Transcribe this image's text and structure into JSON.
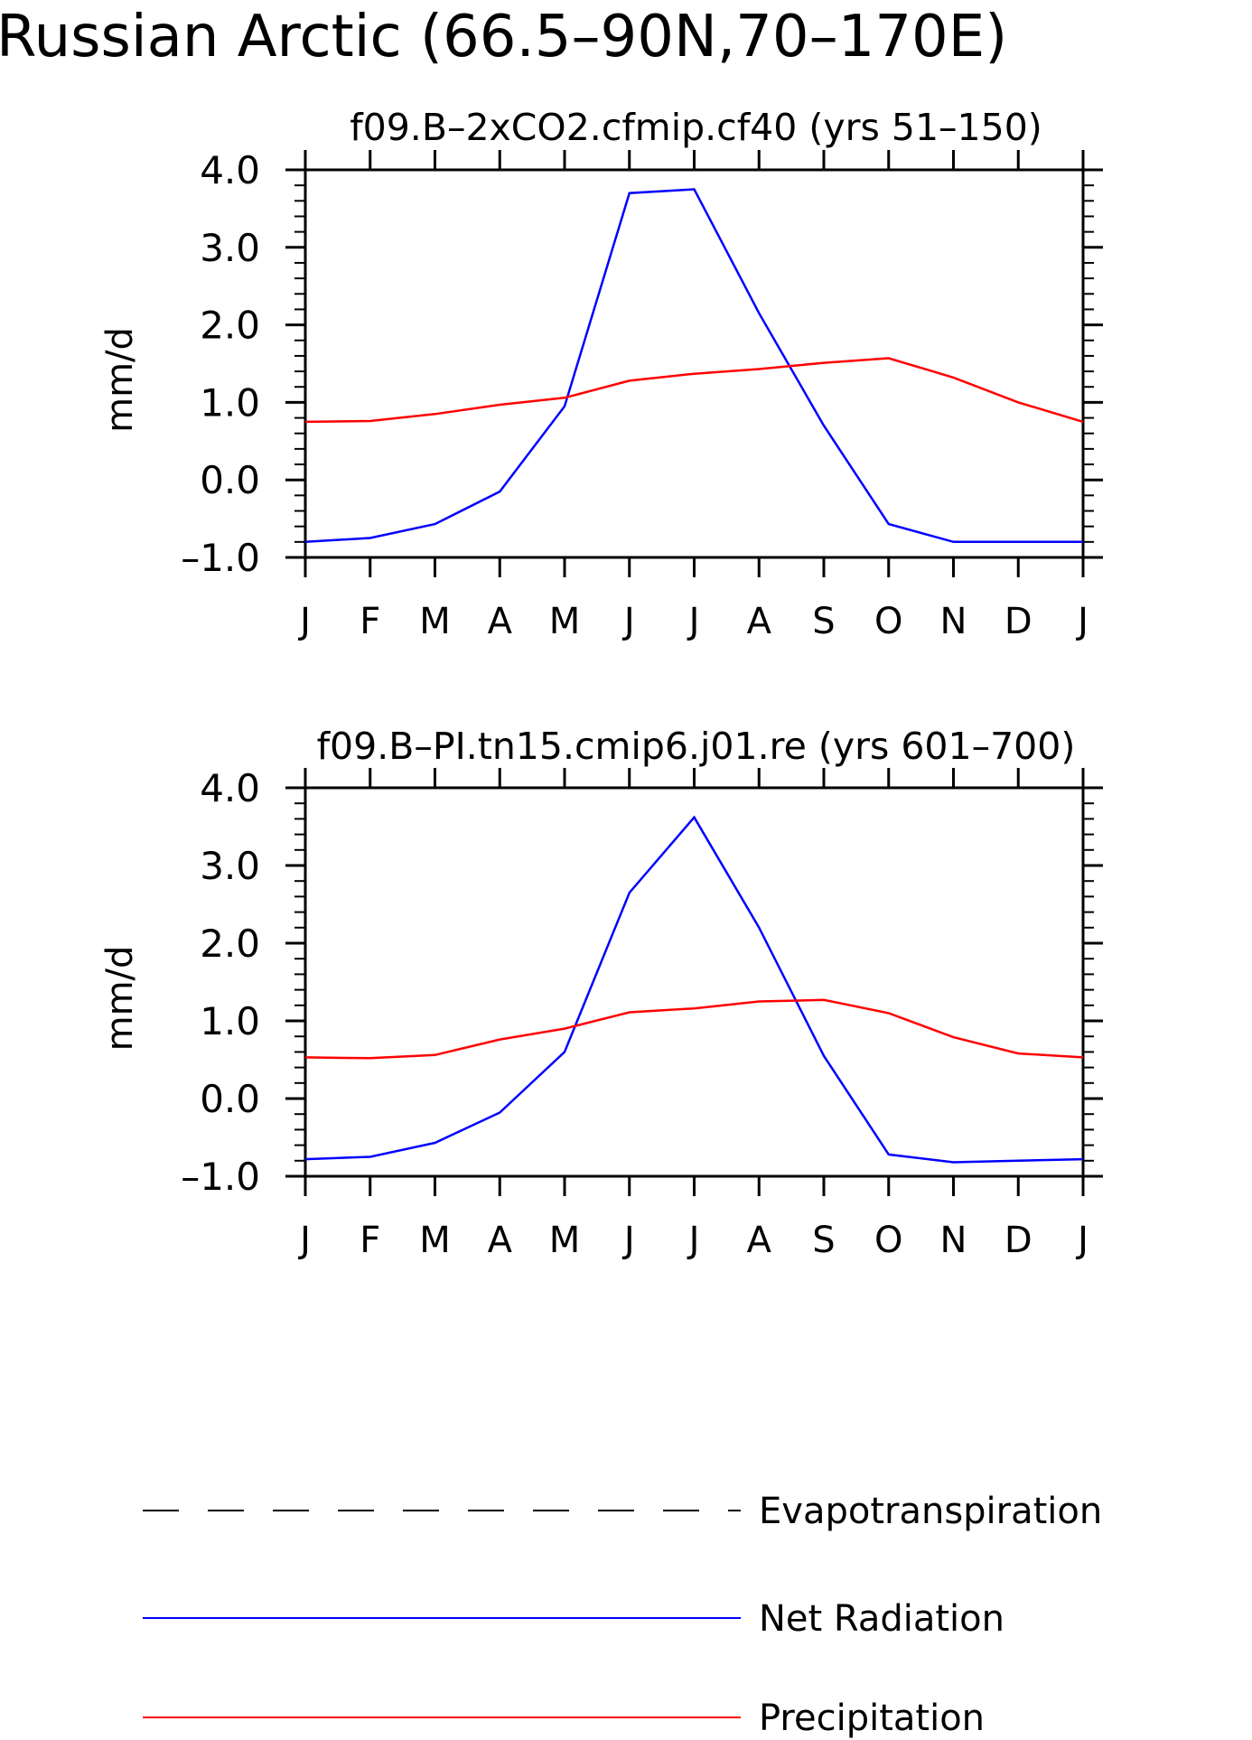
{
  "figure_title": "Russian Arctic (66.5–90N,70–170E)",
  "legend": {
    "items": [
      {
        "label": "Evapotranspiration",
        "color": "#000000",
        "dash": true
      },
      {
        "label": "Net Radiation",
        "color": "#0000ff",
        "dash": false
      },
      {
        "label": "Precipitation",
        "color": "#ff0000",
        "dash": false
      }
    ]
  },
  "chart_data": [
    {
      "type": "line",
      "title": "f09.B–2xCO2.cfmip.cf40 (yrs 51–150)",
      "ylabel": "mm/d",
      "xlabel": "",
      "ylim": [
        -1.0,
        4.0
      ],
      "yticks": [
        "4.0",
        "3.0",
        "2.0",
        "1.0",
        "0.0",
        "–1.0"
      ],
      "categories": [
        "J",
        "F",
        "M",
        "A",
        "M",
        "J",
        "J",
        "A",
        "S",
        "O",
        "N",
        "D",
        "J"
      ],
      "series": [
        {
          "name": "Net Radiation",
          "color": "#0000ff",
          "values": [
            -0.8,
            -0.75,
            -0.57,
            -0.15,
            0.95,
            3.7,
            3.75,
            2.15,
            0.7,
            -0.57,
            -0.8,
            -0.8,
            -0.8
          ]
        },
        {
          "name": "Precipitation",
          "color": "#ff0000",
          "values": [
            0.75,
            0.76,
            0.85,
            0.97,
            1.06,
            1.28,
            1.37,
            1.43,
            1.51,
            1.57,
            1.32,
            1.0,
            0.75
          ]
        }
      ]
    },
    {
      "type": "line",
      "title": "f09.B–PI.tn15.cmip6.j01.re (yrs 601–700)",
      "ylabel": "mm/d",
      "xlabel": "",
      "ylim": [
        -1.0,
        4.0
      ],
      "yticks": [
        "4.0",
        "3.0",
        "2.0",
        "1.0",
        "0.0",
        "–1.0"
      ],
      "categories": [
        "J",
        "F",
        "M",
        "A",
        "M",
        "J",
        "J",
        "A",
        "S",
        "O",
        "N",
        "D",
        "J"
      ],
      "series": [
        {
          "name": "Net Radiation",
          "color": "#0000ff",
          "values": [
            -0.78,
            -0.75,
            -0.57,
            -0.18,
            0.6,
            2.65,
            3.62,
            2.2,
            0.55,
            -0.72,
            -0.82,
            -0.8,
            -0.78
          ]
        },
        {
          "name": "Precipitation",
          "color": "#ff0000",
          "values": [
            0.53,
            0.52,
            0.56,
            0.76,
            0.9,
            1.11,
            1.16,
            1.25,
            1.27,
            1.1,
            0.79,
            0.58,
            0.53
          ]
        }
      ]
    }
  ]
}
